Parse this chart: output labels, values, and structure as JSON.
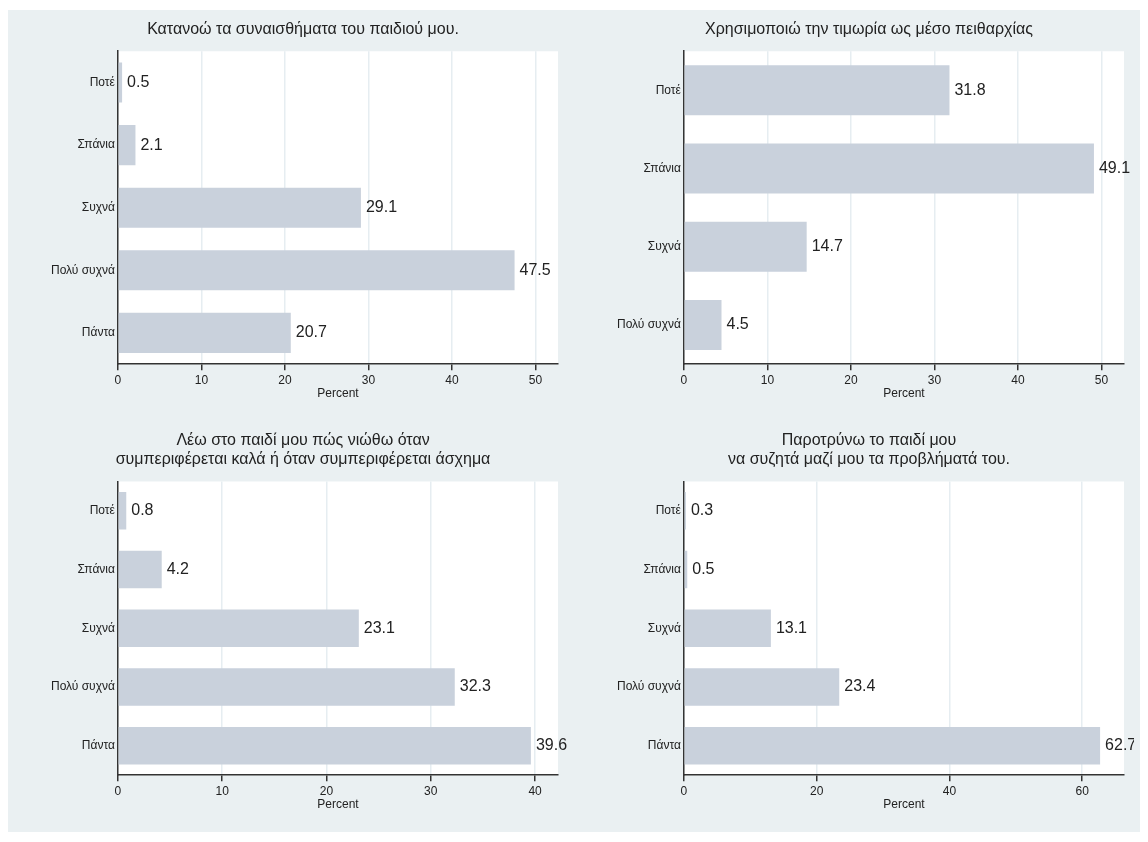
{
  "chart_data": [
    {
      "type": "bar",
      "orientation": "horizontal",
      "title": "Κατανοώ τα συναισθήματα του παιδιού μου.",
      "xlabel": "Percent",
      "categories": [
        "Ποτέ",
        "Σπάνια",
        "Συχνά",
        "Πολύ συχνά",
        "Πάντα"
      ],
      "values": [
        0.5,
        2.1,
        29.1,
        47.5,
        20.7
      ],
      "color": "#c9d1dc",
      "xlim": [
        0,
        52.7
      ],
      "xticks": [
        0,
        10,
        20,
        30,
        40,
        50
      ],
      "grid": "x",
      "data_labels": true
    },
    {
      "type": "bar",
      "orientation": "horizontal",
      "title": "Χρησιμοποιώ την τιμωρία ως μέσο πειθαρχίας",
      "xlabel": "Percent",
      "categories": [
        "Ποτέ",
        "Σπάνια",
        "Συχνά",
        "Πολύ συχνά"
      ],
      "values": [
        31.8,
        49.1,
        14.7,
        4.5
      ],
      "color": "#c9d1dc",
      "xlim": [
        0,
        52.7
      ],
      "xticks": [
        0,
        10,
        20,
        30,
        40,
        50
      ],
      "grid": "x",
      "data_labels": true
    },
    {
      "type": "bar",
      "orientation": "horizontal",
      "title": "Λέω στο παιδί μου πώς νιώθω όταν\nσυμπεριφέρεται καλά ή όταν συμπεριφέρεται άσχημα",
      "xlabel": "Percent",
      "categories": [
        "Ποτέ",
        "Σπάνια",
        "Συχνά",
        "Πολύ συχνά",
        "Πάντα"
      ],
      "values": [
        0.8,
        4.2,
        23.1,
        32.3,
        39.6
      ],
      "color": "#c9d1dc",
      "xlim": [
        0,
        42.2
      ],
      "xticks": [
        0,
        10,
        20,
        30,
        40
      ],
      "grid": "x",
      "data_labels": true
    },
    {
      "type": "bar",
      "orientation": "horizontal",
      "title": "Παροτρύνω το παιδί μου\nνα συζητά μαζί μου τα προβλήματά του.",
      "xlabel": "Percent",
      "categories": [
        "Ποτέ",
        "Σπάνια",
        "Συχνά",
        "Πολύ συχνά",
        "Πάντα"
      ],
      "values": [
        0.3,
        0.5,
        13.1,
        23.4,
        62.7
      ],
      "color": "#c9d1dc",
      "xlim": [
        0,
        66.3
      ],
      "xticks": [
        0,
        20,
        40,
        60
      ],
      "grid": "x",
      "data_labels": true
    }
  ]
}
